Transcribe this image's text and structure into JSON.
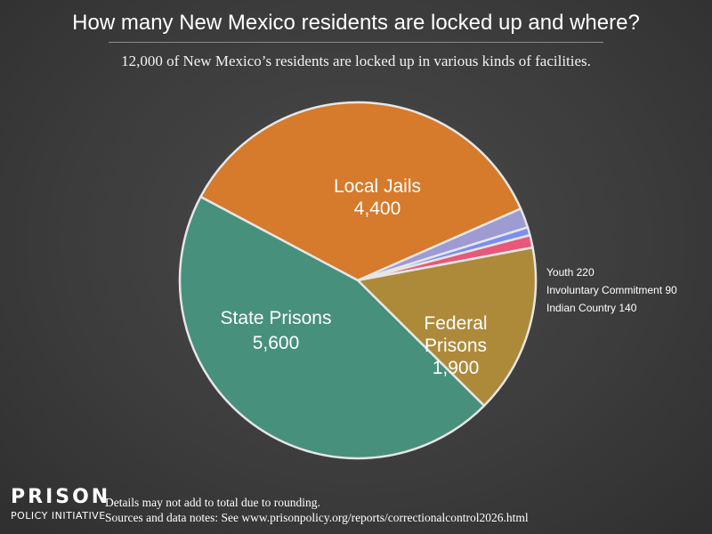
{
  "chart_data": {
    "type": "pie",
    "title": "How many New Mexico residents are locked up and where?",
    "subtitle": "12,000 of New Mexico’s residents are locked up in various kinds of facilities.",
    "slices": [
      {
        "name": "Local Jails",
        "value": 4400,
        "value_label": "4,400",
        "color": "#d67a2c",
        "label_lines": [
          "Local Jails",
          "4,400"
        ]
      },
      {
        "name": "Youth",
        "value": 220,
        "value_label": "220",
        "color": "#9e9ad2",
        "label_lines": [
          "Youth 220"
        ]
      },
      {
        "name": "Involuntary Commitment",
        "value": 90,
        "value_label": "90",
        "color": "#7b8ff0",
        "label_lines": [
          "Involuntary Commitment 90"
        ]
      },
      {
        "name": "Indian Country",
        "value": 140,
        "value_label": "140",
        "color": "#e7587a",
        "label_lines": [
          "Indian Country 140"
        ]
      },
      {
        "name": "Federal Prisons",
        "value": 1900,
        "value_label": "1,900",
        "color": "#ad8a3a",
        "label_lines": [
          "Federal",
          "Prisons",
          "1,900"
        ]
      },
      {
        "name": "State Prisons",
        "value": 5600,
        "value_label": "5,600",
        "color": "#47907c",
        "label_lines": [
          "State Prisons",
          "5,600"
        ]
      }
    ]
  },
  "logo": {
    "line1": "PRISON",
    "line2": "POLICY INITIATIVE"
  },
  "footnotes": {
    "line1": "Details may not add to total due to rounding.",
    "line2": "Sources and data notes: See www.prisonpolicy.org/reports/correctionalcontrol2026.html"
  }
}
